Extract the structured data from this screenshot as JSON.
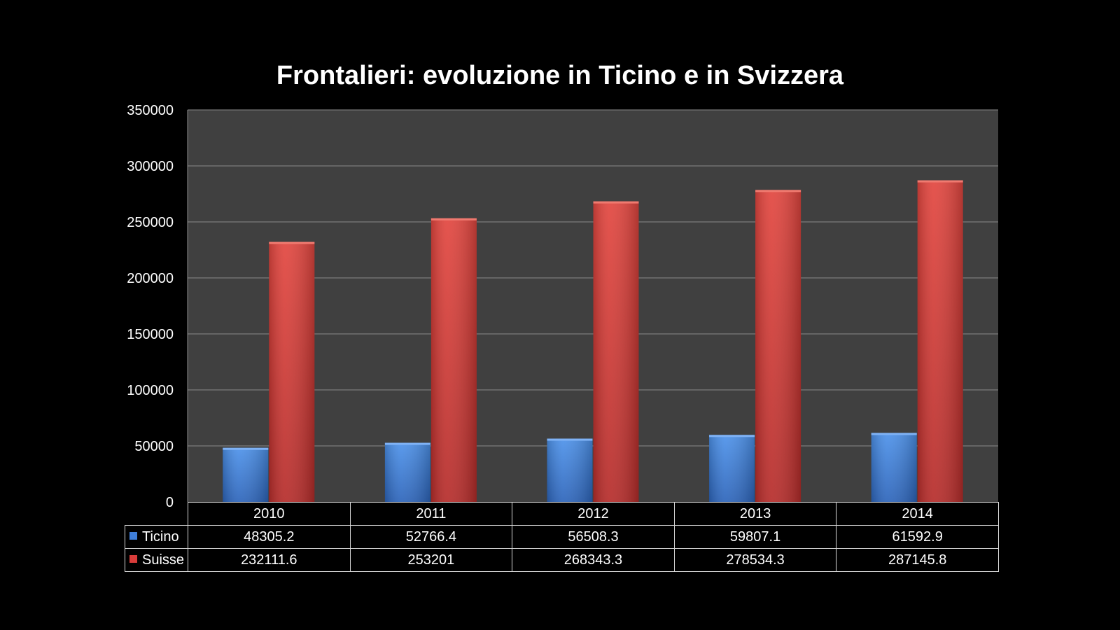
{
  "chart_data": {
    "type": "bar",
    "title": "Frontalieri: evoluzione in Ticino e in Svizzera",
    "categories": [
      "2010",
      "2011",
      "2012",
      "2013",
      "2014"
    ],
    "series": [
      {
        "name": "Ticino",
        "color": "#3f7ed9",
        "values": [
          48305.2,
          52766.4,
          56508.3,
          59807.1,
          61592.9
        ],
        "labels": [
          "48305.2",
          "52766.4",
          "56508.3",
          "59807.1",
          "61592.9"
        ]
      },
      {
        "name": "Suisse",
        "color": "#d93c3a",
        "values": [
          232111.6,
          253201,
          268343.3,
          278534.3,
          287145.8
        ],
        "labels": [
          "232111.6",
          "253201",
          "268343.3",
          "278534.3",
          "287145.8"
        ]
      }
    ],
    "ylim": [
      0,
      350000
    ],
    "yticks": [
      0,
      50000,
      100000,
      150000,
      200000,
      250000,
      300000,
      350000
    ],
    "grid": true,
    "legend": "data table below chart",
    "plot_background": "#404040"
  }
}
